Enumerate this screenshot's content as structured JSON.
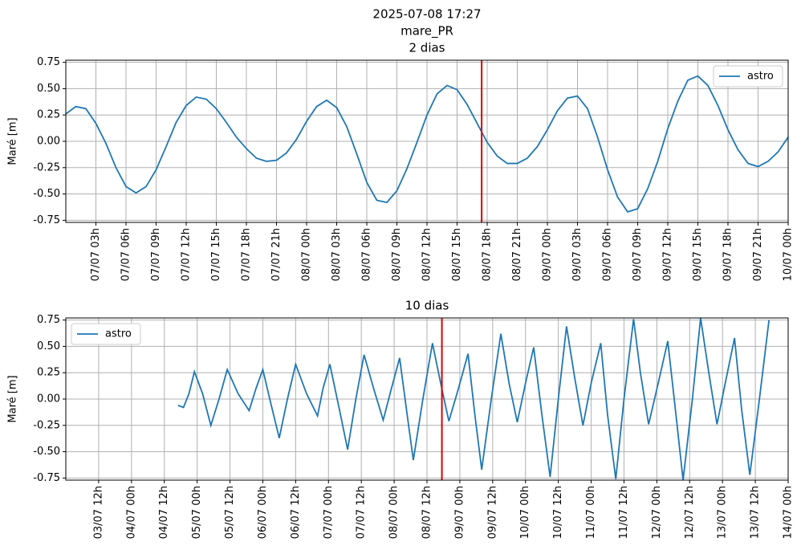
{
  "title": "2025-07-08 17:27",
  "subtitle": "mare_PR",
  "chart_data": [
    {
      "type": "line",
      "title": "2 dias",
      "ylabel": "Maré [m]",
      "grid": true,
      "legend": "upper right",
      "xlim": [
        0,
        72
      ],
      "ylim": [
        -0.77,
        0.77
      ],
      "yticks": [
        -0.75,
        {
          "value": -0.5,
          "label": "-0.50"
        },
        -0.25,
        {
          "value": 0,
          "label": "0.00"
        },
        0.25,
        {
          "value": 0.5,
          "label": "0.50"
        },
        0.75
      ],
      "xticks": [
        {
          "value": 3,
          "label": "07/07 03h"
        },
        {
          "value": 6,
          "label": "07/07 06h"
        },
        {
          "value": 9,
          "label": "07/07 09h"
        },
        {
          "value": 12,
          "label": "07/07 12h"
        },
        {
          "value": 15,
          "label": "07/07 15h"
        },
        {
          "value": 18,
          "label": "07/07 18h"
        },
        {
          "value": 21,
          "label": "07/07 21h"
        },
        {
          "value": 24,
          "label": "08/07 00h"
        },
        {
          "value": 27,
          "label": "08/07 03h"
        },
        {
          "value": 30,
          "label": "08/07 06h"
        },
        {
          "value": 33,
          "label": "08/07 09h"
        },
        {
          "value": 36,
          "label": "08/07 12h"
        },
        {
          "value": 39,
          "label": "08/07 15h"
        },
        {
          "value": 42,
          "label": "08/07 18h"
        },
        {
          "value": 45,
          "label": "08/07 21h"
        },
        {
          "value": 48,
          "label": "09/07 00h"
        },
        {
          "value": 51,
          "label": "09/07 03h"
        },
        {
          "value": 54,
          "label": "09/07 06h"
        },
        {
          "value": 57,
          "label": "09/07 09h"
        },
        {
          "value": 60,
          "label": "09/07 12h"
        },
        {
          "value": 63,
          "label": "09/07 15h"
        },
        {
          "value": 66,
          "label": "09/07 18h"
        },
        {
          "value": 69,
          "label": "09/07 21h"
        },
        {
          "value": 72,
          "label": "10/07 00h"
        }
      ],
      "vline": {
        "x": 41.45,
        "color": "#e00000"
      },
      "x": [
        0,
        1,
        2,
        3,
        4,
        5,
        6,
        7,
        8,
        9,
        10,
        11,
        12,
        13,
        14,
        15,
        16,
        17,
        18,
        19,
        20,
        21,
        22,
        23,
        24,
        25,
        26,
        27,
        28,
        29,
        30,
        31,
        32,
        33,
        34,
        35,
        36,
        37,
        38,
        39,
        40,
        41,
        42,
        43,
        44,
        45,
        46,
        47,
        48,
        49,
        50,
        51,
        52,
        53,
        54,
        55,
        56,
        57,
        58,
        59,
        60,
        61,
        62,
        63,
        64,
        65,
        66,
        67,
        68,
        69,
        70,
        71,
        72
      ],
      "series": [
        {
          "name": "astro",
          "color": "#1f77b4",
          "values": [
            0.26,
            0.33,
            0.31,
            0.17,
            -0.02,
            -0.25,
            -0.43,
            -0.49,
            -0.43,
            -0.27,
            -0.05,
            0.18,
            0.34,
            0.42,
            0.4,
            0.31,
            0.18,
            0.04,
            -0.07,
            -0.16,
            -0.19,
            -0.18,
            -0.11,
            0.02,
            0.19,
            0.33,
            0.39,
            0.32,
            0.14,
            -0.12,
            -0.39,
            -0.56,
            -0.58,
            -0.47,
            -0.26,
            -0.01,
            0.25,
            0.45,
            0.53,
            0.49,
            0.35,
            0.17,
            -0.01,
            -0.14,
            -0.21,
            -0.21,
            -0.16,
            -0.05,
            0.11,
            0.29,
            0.41,
            0.43,
            0.31,
            0.04,
            -0.27,
            -0.53,
            -0.67,
            -0.64,
            -0.45,
            -0.19,
            0.12,
            0.38,
            0.58,
            0.62,
            0.53,
            0.34,
            0.11,
            -0.08,
            -0.21,
            -0.24,
            -0.19,
            -0.1,
            0.04
          ]
        }
      ]
    },
    {
      "type": "line",
      "title": "10 dias",
      "ylabel": "Maré [m]",
      "grid": true,
      "legend": "upper left",
      "xlim": [
        0,
        264
      ],
      "ylim": [
        -0.77,
        0.77
      ],
      "yticks": [
        -0.75,
        {
          "value": -0.5,
          "label": "-0.50"
        },
        -0.25,
        {
          "value": 0,
          "label": "0.00"
        },
        0.25,
        {
          "value": 0.5,
          "label": "0.50"
        },
        0.75
      ],
      "xticks": [
        {
          "value": 12,
          "label": "03/07 12h"
        },
        {
          "value": 24,
          "label": "04/07 00h"
        },
        {
          "value": 36,
          "label": "04/07 12h"
        },
        {
          "value": 48,
          "label": "05/07 00h"
        },
        {
          "value": 60,
          "label": "05/07 12h"
        },
        {
          "value": 72,
          "label": "06/07 00h"
        },
        {
          "value": 84,
          "label": "06/07 12h"
        },
        {
          "value": 96,
          "label": "07/07 00h"
        },
        {
          "value": 108,
          "label": "07/07 12h"
        },
        {
          "value": 120,
          "label": "08/07 00h"
        },
        {
          "value": 132,
          "label": "08/07 12h"
        },
        {
          "value": 144,
          "label": "09/07 00h"
        },
        {
          "value": 156,
          "label": "09/07 12h"
        },
        {
          "value": 168,
          "label": "10/07 00h"
        },
        {
          "value": 180,
          "label": "10/07 12h"
        },
        {
          "value": 192,
          "label": "11/07 00h"
        },
        {
          "value": 204,
          "label": "11/07 12h"
        },
        {
          "value": 216,
          "label": "12/07 00h"
        },
        {
          "value": 228,
          "label": "12/07 12h"
        },
        {
          "value": 240,
          "label": "13/07 00h"
        },
        {
          "value": 252,
          "label": "13/07 12h"
        },
        {
          "value": 264,
          "label": "14/07 00h"
        }
      ],
      "vline": {
        "x": 137.45,
        "color": "#e00000"
      },
      "x": [
        41,
        43,
        45,
        47,
        50,
        53,
        56,
        59,
        63,
        67,
        69.5,
        72,
        75,
        78,
        81,
        84,
        88,
        92,
        94,
        96.5,
        100,
        103,
        106,
        109,
        112.5,
        116,
        119,
        122,
        124.5,
        127,
        130.5,
        134,
        137,
        140,
        143.5,
        147,
        149.5,
        152,
        155.5,
        159,
        162,
        165,
        168,
        171,
        174,
        177,
        180,
        183,
        186,
        189,
        192,
        195.5,
        198,
        201,
        204,
        207.5,
        210,
        213,
        216.5,
        220,
        223,
        225.6,
        229,
        232,
        235,
        238,
        241,
        244.4,
        247,
        250,
        253.5,
        257
      ],
      "series": [
        {
          "name": "astro",
          "color": "#1f77b4",
          "values": [
            -0.06,
            -0.08,
            0.05,
            0.26,
            0.05,
            -0.25,
            0.0,
            0.28,
            0.05,
            -0.11,
            0.1,
            0.28,
            -0.05,
            -0.37,
            0.0,
            0.33,
            0.05,
            -0.16,
            0.1,
            0.33,
            -0.1,
            -0.48,
            0.0,
            0.42,
            0.1,
            -0.2,
            0.1,
            0.39,
            -0.1,
            -0.58,
            0.0,
            0.53,
            0.15,
            -0.21,
            0.1,
            0.43,
            -0.15,
            -0.67,
            0.0,
            0.62,
            0.15,
            -0.22,
            0.15,
            0.49,
            -0.15,
            -0.74,
            0.0,
            0.69,
            0.2,
            -0.25,
            0.15,
            0.53,
            -0.15,
            -0.76,
            0.0,
            0.76,
            0.25,
            -0.24,
            0.15,
            0.55,
            -0.15,
            -0.77,
            0.0,
            0.77,
            0.25,
            -0.24,
            0.15,
            0.58,
            -0.1,
            -0.72,
            0.0,
            0.75
          ]
        }
      ]
    }
  ]
}
